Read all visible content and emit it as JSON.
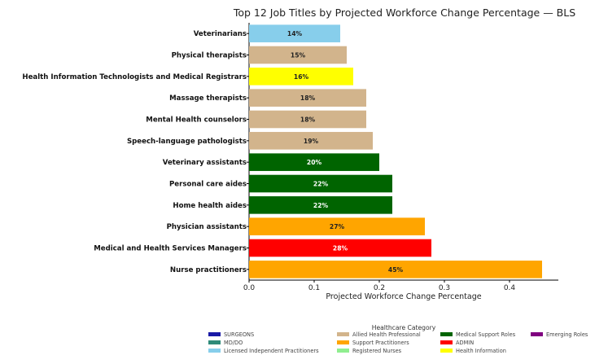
{
  "chart_data": {
    "type": "bar",
    "orientation": "horizontal",
    "title": "Top 12 Job Titles by Projected Workforce Change Percentage — BLS",
    "xlabel": "Projected Workforce Change Percentage",
    "ylabel": "",
    "xlim": [
      0,
      0.475
    ],
    "xticks": [
      "0.0",
      "0.1",
      "0.2",
      "0.3",
      "0.4"
    ],
    "xtick_values": [
      0,
      0.1,
      0.2,
      0.3,
      0.4
    ],
    "grid": false,
    "categories": [
      "Veterinarians",
      "Physical therapists",
      "Health Information Technologists and Medical Registrars",
      "Massage therapists",
      "Mental Health counselors",
      "Speech-language pathologists",
      "Veterinary assistants",
      "Personal care aides",
      "Home health aides",
      "Physician assistants",
      "Medical and Health Services Managers",
      "Nurse practitioners"
    ],
    "values": [
      0.14,
      0.15,
      0.16,
      0.18,
      0.18,
      0.19,
      0.2,
      0.22,
      0.22,
      0.27,
      0.28,
      0.45
    ],
    "value_labels": [
      "14%",
      "15%",
      "16%",
      "18%",
      "18%",
      "19%",
      "20%",
      "22%",
      "22%",
      "27%",
      "28%",
      "45%"
    ],
    "bar_categories": [
      "Licensed Independent Practitioners",
      "Allied Health Professional",
      "Health Information",
      "Allied Health Professional",
      "Allied Health Professional",
      "Allied Health Professional",
      "Medical Support Roles",
      "Medical Support Roles",
      "Medical Support Roles",
      "Support Practitioners",
      "ADMIN",
      "Support Practitioners"
    ],
    "legend": {
      "title": "Healthcare Category",
      "placement": "bottom",
      "entries": [
        {
          "name": "SURGEONS",
          "color": "#1a1aa6"
        },
        {
          "name": "MD/DO",
          "color": "#2e8b7a"
        },
        {
          "name": "Licensed Independent Practitioners",
          "color": "#87ceeb"
        },
        {
          "name": "Allied Health Professional",
          "color": "#d2b48c"
        },
        {
          "name": "Support Practitioners",
          "color": "#ffa500"
        },
        {
          "name": "Registered Nurses",
          "color": "#90ee90"
        },
        {
          "name": "Medical Support Roles",
          "color": "#006400"
        },
        {
          "name": "ADMIN",
          "color": "#ff0000"
        },
        {
          "name": "Health Information",
          "color": "#ffff00"
        },
        {
          "name": "Emerging Roles",
          "color": "#800080"
        }
      ]
    }
  }
}
